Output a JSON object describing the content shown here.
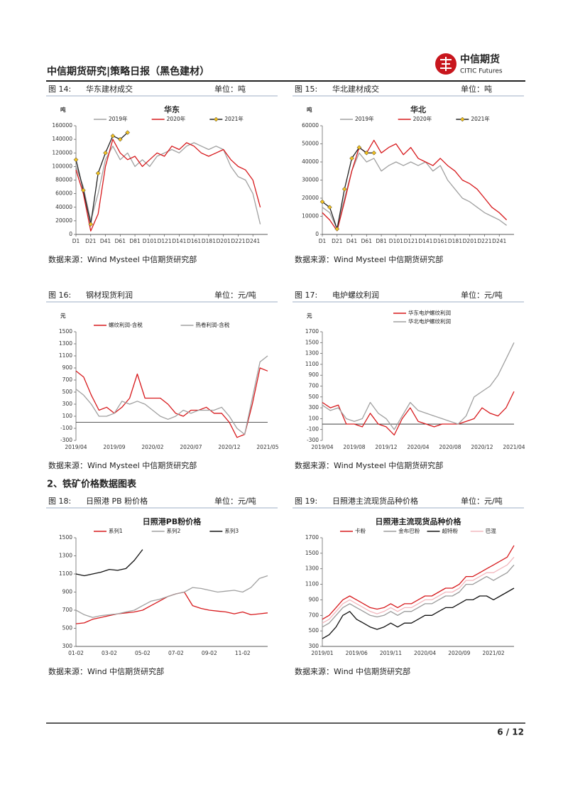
{
  "header": {
    "title": "中信期货研究|策略日报（黑色建材）",
    "logo_cn": "中信期货",
    "logo_en": "CITIC Futures"
  },
  "section": "2、铁矿价格数据图表",
  "figures": [
    {
      "label": "图 14:",
      "title": "华东建材成交",
      "unit": "单位：吨",
      "source": "数据来源：Wind Mysteel 中信期货研究部"
    },
    {
      "label": "图 15:",
      "title": "华北建材成交",
      "unit": "单位：吨",
      "source": "数据来源：Wind Mysteel 中信期货研究部"
    },
    {
      "label": "图 16:",
      "title": "钢材现货利润",
      "unit": "单位：元/吨",
      "source": "数据来源：Wind Mysteel 中信期货研究部"
    },
    {
      "label": "图 17:",
      "title": "电炉螺纹利润",
      "unit": "单位：元/吨",
      "source": "数据来源：Wind Mysteel 中信期货研究部"
    },
    {
      "label": "图 18:",
      "title": "日照港 PB 粉价格",
      "unit": "单位：元/吨",
      "source": "数据来源：Wind  中信期货研究部"
    },
    {
      "label": "图 19:",
      "title": "日照港主流现货品种价格",
      "unit": "单位：元/吨",
      "source": "数据来源：Wind  中信期货研究部"
    }
  ],
  "chart_data": [
    {
      "type": "line",
      "title": "华东",
      "ylabel": "吨",
      "legend_layout": "row",
      "x": [
        1,
        11,
        21,
        31,
        41,
        51,
        61,
        71,
        81,
        91,
        101,
        111,
        121,
        131,
        141,
        151,
        161,
        171,
        181,
        191,
        201,
        211,
        221,
        231,
        241,
        251
      ],
      "xlim": [
        1,
        261
      ],
      "xticks": [
        {
          "value": 1,
          "label": "D1"
        },
        {
          "value": 21,
          "label": "D21"
        },
        {
          "value": 41,
          "label": "D41"
        },
        {
          "value": 61,
          "label": "D61"
        },
        {
          "value": 81,
          "label": "D81"
        },
        {
          "value": 101,
          "label": "D101"
        },
        {
          "value": 121,
          "label": "D121"
        },
        {
          "value": 141,
          "label": "D141"
        },
        {
          "value": 161,
          "label": "D161"
        },
        {
          "value": 181,
          "label": "D181"
        },
        {
          "value": 201,
          "label": "D201"
        },
        {
          "value": 221,
          "label": "D221"
        },
        {
          "value": 241,
          "label": "D241"
        }
      ],
      "ylim": [
        0,
        160000
      ],
      "yticks": [
        0,
        20000,
        40000,
        60000,
        80000,
        100000,
        120000,
        140000,
        160000
      ],
      "series": [
        {
          "name": "2019年",
          "color": "#a0a0a0",
          "values": [
            100000,
            70000,
            20000,
            60000,
            110000,
            130000,
            110000,
            120000,
            100000,
            110000,
            100000,
            115000,
            120000,
            125000,
            120000,
            130000,
            135000,
            130000,
            125000,
            130000,
            125000,
            100000,
            85000,
            80000,
            60000,
            15000
          ]
        },
        {
          "name": "2020年",
          "color": "#d7191c",
          "values": [
            95000,
            60000,
            5000,
            30000,
            100000,
            140000,
            120000,
            110000,
            115000,
            100000,
            110000,
            120000,
            115000,
            130000,
            125000,
            135000,
            130000,
            120000,
            115000,
            120000,
            125000,
            110000,
            100000,
            95000,
            80000,
            40000
          ]
        },
        {
          "name": "2021年",
          "color": "#222222",
          "marker": "diamond",
          "marker_color": "#f0c020",
          "values": [
            110000,
            65000,
            15000,
            90000,
            120000,
            145000,
            140000,
            150000,
            null,
            null,
            null,
            null,
            null,
            null,
            null,
            null,
            null,
            null,
            null,
            null,
            null,
            null,
            null,
            null,
            null,
            null
          ]
        }
      ]
    },
    {
      "type": "line",
      "title": "华北",
      "ylabel": "吨",
      "legend_layout": "row",
      "x": [
        1,
        11,
        21,
        31,
        41,
        51,
        61,
        71,
        81,
        91,
        101,
        111,
        121,
        131,
        141,
        151,
        161,
        171,
        181,
        191,
        201,
        211,
        221,
        231,
        241,
        251
      ],
      "xlim": [
        1,
        261
      ],
      "xticks": [
        {
          "value": 1,
          "label": "D1"
        },
        {
          "value": 21,
          "label": "D21"
        },
        {
          "value": 41,
          "label": "D41"
        },
        {
          "value": 61,
          "label": "D61"
        },
        {
          "value": 81,
          "label": "D81"
        },
        {
          "value": 101,
          "label": "D101"
        },
        {
          "value": 121,
          "label": "D121"
        },
        {
          "value": 141,
          "label": "D141"
        },
        {
          "value": 161,
          "label": "D161"
        },
        {
          "value": 181,
          "label": "D181"
        },
        {
          "value": 201,
          "label": "D201"
        },
        {
          "value": 221,
          "label": "D221"
        },
        {
          "value": 241,
          "label": "D241"
        }
      ],
      "ylim": [
        0,
        60000
      ],
      "yticks": [
        0,
        10000,
        20000,
        30000,
        40000,
        50000,
        60000
      ],
      "series": [
        {
          "name": "2019年",
          "color": "#a0a0a0",
          "values": [
            15000,
            12000,
            3000,
            20000,
            35000,
            45000,
            40000,
            42000,
            35000,
            38000,
            40000,
            38000,
            40000,
            38000,
            40000,
            35000,
            38000,
            30000,
            25000,
            20000,
            18000,
            15000,
            12000,
            10000,
            8000,
            5000
          ]
        },
        {
          "name": "2020年",
          "color": "#d7191c",
          "values": [
            12000,
            8000,
            2000,
            18000,
            35000,
            48000,
            45000,
            52000,
            45000,
            48000,
            50000,
            44000,
            48000,
            42000,
            40000,
            38000,
            42000,
            38000,
            35000,
            30000,
            28000,
            25000,
            20000,
            15000,
            12000,
            8000
          ]
        },
        {
          "name": "2021年",
          "color": "#222222",
          "marker": "diamond",
          "marker_color": "#f0c020",
          "values": [
            18000,
            15000,
            3000,
            25000,
            42000,
            48000,
            45000,
            45000,
            null,
            null,
            null,
            null,
            null,
            null,
            null,
            null,
            null,
            null,
            null,
            null,
            null,
            null,
            null,
            null,
            null,
            null
          ]
        }
      ]
    },
    {
      "type": "line",
      "ylabel": "元",
      "legend_layout": "row",
      "categories": [
        "2019/04",
        null,
        null,
        null,
        null,
        "2019/09",
        null,
        null,
        null,
        null,
        "2020/02",
        null,
        null,
        null,
        null,
        "2020/07",
        null,
        null,
        null,
        null,
        "2020/12",
        null,
        null,
        null,
        null,
        "2021/05"
      ],
      "ylim": [
        -300,
        1500
      ],
      "yticks": [
        -300,
        -100,
        100,
        300,
        500,
        700,
        900,
        1100,
        1300,
        1500
      ],
      "series": [
        {
          "name": "螺纹利润-含税",
          "color": "#d7191c",
          "values": [
            850,
            750,
            450,
            200,
            250,
            150,
            250,
            400,
            800,
            400,
            400,
            400,
            300,
            150,
            100,
            200,
            200,
            250,
            150,
            150,
            0,
            -250,
            -200,
            300,
            900,
            850
          ]
        },
        {
          "name": "热卷利润-含税",
          "color": "#a0a0a0",
          "values": [
            550,
            450,
            300,
            100,
            100,
            150,
            350,
            300,
            350,
            300,
            200,
            100,
            50,
            100,
            200,
            150,
            200,
            200,
            200,
            250,
            100,
            -100,
            -200,
            400,
            1000,
            1100
          ]
        }
      ]
    },
    {
      "type": "line",
      "ylabel": "元",
      "legend_layout": "column",
      "categories": [
        "2019/04",
        null,
        null,
        null,
        "2019/08",
        null,
        null,
        null,
        "2019/12",
        null,
        null,
        null,
        "2020/04",
        null,
        null,
        null,
        "2020/08",
        null,
        null,
        null,
        "2020/12",
        null,
        null,
        null,
        "2021/04"
      ],
      "ylim": [
        -300,
        1700
      ],
      "yticks": [
        -300,
        -100,
        100,
        300,
        500,
        700,
        900,
        1100,
        1300,
        1500,
        1700
      ],
      "series": [
        {
          "name": "华东电炉螺纹利润",
          "color": "#d7191c",
          "values": [
            400,
            300,
            350,
            0,
            0,
            -50,
            200,
            0,
            -50,
            -200,
            100,
            300,
            50,
            0,
            -50,
            0,
            0,
            0,
            50,
            100,
            300,
            200,
            150,
            300,
            600
          ]
        },
        {
          "name": "华北电炉螺纹利润",
          "color": "#a0a0a0",
          "values": [
            350,
            250,
            300,
            100,
            50,
            100,
            400,
            200,
            100,
            -100,
            150,
            400,
            250,
            200,
            150,
            100,
            50,
            0,
            150,
            500,
            600,
            700,
            900,
            1200,
            1500
          ]
        }
      ]
    },
    {
      "type": "line",
      "title": "日照港PB粉价格",
      "legend_layout": "row",
      "categories": [
        "01-02",
        null,
        null,
        null,
        "03-02",
        null,
        null,
        null,
        "05-02",
        null,
        null,
        null,
        "07-02",
        null,
        null,
        null,
        "09-02",
        null,
        null,
        null,
        "11-02",
        null,
        null,
        null
      ],
      "ylim": [
        300,
        1500
      ],
      "yticks": [
        300,
        500,
        700,
        900,
        1100,
        1300,
        1500
      ],
      "series": [
        {
          "name": "系列1",
          "color": "#d7191c",
          "values": [
            550,
            560,
            600,
            620,
            640,
            660,
            670,
            680,
            700,
            750,
            800,
            850,
            880,
            900,
            750,
            720,
            700,
            690,
            680,
            660,
            680,
            650,
            660,
            670
          ]
        },
        {
          "name": "系列2",
          "color": "#a0a0a0",
          "values": [
            700,
            650,
            620,
            640,
            650,
            660,
            680,
            700,
            750,
            800,
            820,
            850,
            880,
            900,
            950,
            940,
            920,
            900,
            910,
            920,
            900,
            950,
            1050,
            1080
          ]
        },
        {
          "name": "系列3",
          "color": "#111111",
          "values": [
            1100,
            1080,
            1100,
            1120,
            1150,
            1140,
            1160,
            1250,
            1370,
            null,
            null,
            null,
            null,
            null,
            null,
            null,
            null,
            null,
            null,
            null,
            null,
            null,
            null,
            null
          ]
        }
      ]
    },
    {
      "type": "line",
      "title": "日照港主流现货品种价格",
      "legend_layout": "row",
      "categories": [
        "2019/01",
        null,
        null,
        null,
        null,
        "2019/06",
        null,
        null,
        null,
        null,
        "2019/11",
        null,
        null,
        null,
        null,
        "2020/04",
        null,
        null,
        null,
        null,
        "2020/09",
        null,
        null,
        null,
        null,
        "2021/02",
        null,
        null,
        null
      ],
      "ylim": [
        300,
        1700
      ],
      "yticks": [
        300,
        500,
        700,
        900,
        1100,
        1300,
        1500,
        1700
      ],
      "series": [
        {
          "name": "卡粉",
          "color": "#d7191c",
          "values": [
            650,
            700,
            800,
            900,
            950,
            900,
            850,
            800,
            780,
            800,
            850,
            800,
            850,
            850,
            900,
            950,
            950,
            1000,
            1050,
            1050,
            1100,
            1200,
            1200,
            1250,
            1300,
            1350,
            1400,
            1450,
            1600
          ]
        },
        {
          "name": "金布巴粉",
          "color": "#9a9a9a",
          "values": [
            550,
            600,
            700,
            800,
            850,
            800,
            750,
            700,
            680,
            700,
            750,
            700,
            750,
            750,
            800,
            850,
            850,
            900,
            950,
            950,
            1000,
            1100,
            1100,
            1150,
            1200,
            1150,
            1200,
            1250,
            1350
          ]
        },
        {
          "name": "超特粉",
          "color": "#111111",
          "values": [
            400,
            450,
            550,
            700,
            750,
            650,
            600,
            550,
            520,
            550,
            600,
            550,
            600,
            600,
            650,
            700,
            700,
            750,
            800,
            800,
            850,
            900,
            900,
            950,
            950,
            900,
            950,
            1000,
            1050
          ]
        },
        {
          "name": "巴混",
          "color": "#f2b8be",
          "values": [
            600,
            650,
            750,
            850,
            900,
            850,
            800,
            750,
            720,
            750,
            800,
            750,
            800,
            800,
            850,
            900,
            900,
            950,
            1000,
            1000,
            1050,
            1150,
            1150,
            1200,
            1250,
            1250,
            1300,
            1350,
            1450
          ]
        }
      ]
    }
  ],
  "footer": {
    "page": "6 / 12"
  }
}
